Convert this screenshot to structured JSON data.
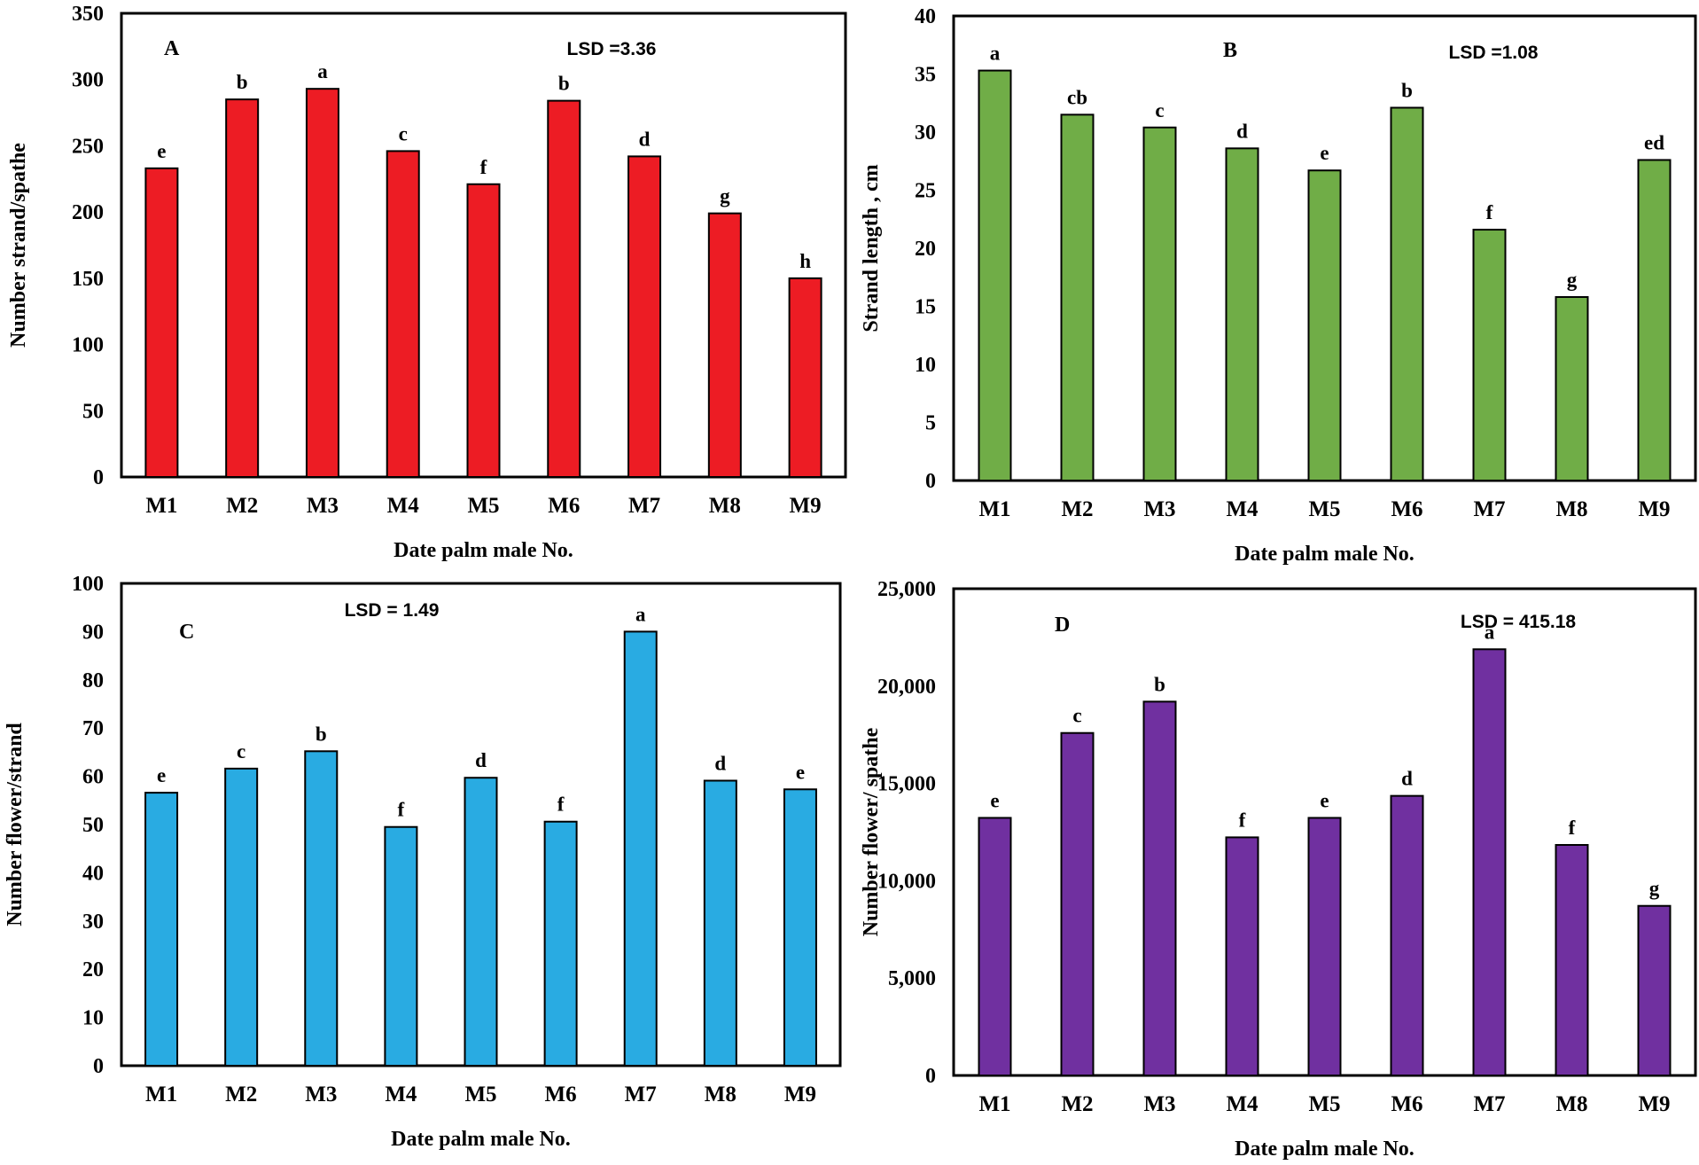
{
  "chart_data": [
    {
      "type": "bar",
      "panel": "A",
      "lsd": "LSD =3.36",
      "title": "",
      "xlabel": "Date palm  male No.",
      "ylabel": "Number strand/spathe",
      "categories": [
        "M1",
        "M2",
        "M3",
        "M4",
        "M5",
        "M6",
        "M7",
        "M8",
        "M9"
      ],
      "values": [
        233,
        285,
        293,
        246,
        221,
        284,
        242,
        199,
        150
      ],
      "significance": [
        "e",
        "b",
        "a",
        "c",
        "f",
        "b",
        "d",
        "g",
        "h"
      ],
      "ylim": [
        0,
        350
      ],
      "yticks": [
        0,
        50,
        100,
        150,
        200,
        250,
        300,
        350
      ],
      "ytick_labels": [
        "0",
        "50",
        "100",
        "150",
        "200",
        "250",
        "300",
        "350"
      ],
      "color": "#ED1C24",
      "grid": false,
      "legend": "none"
    },
    {
      "type": "bar",
      "panel": "B",
      "lsd": "LSD =1.08",
      "title": "",
      "xlabel": "Date palm  male No.",
      "ylabel": "Strand length , cm",
      "categories": [
        "M1",
        "M2",
        "M3",
        "M4",
        "M5",
        "M6",
        "M7",
        "M8",
        "M9"
      ],
      "values": [
        35.3,
        31.5,
        30.4,
        28.6,
        26.7,
        32.1,
        21.6,
        15.8,
        27.6
      ],
      "significance": [
        "a",
        "cb",
        "c",
        "d",
        "e",
        "b",
        "f",
        "g",
        "ed"
      ],
      "ylim": [
        0,
        40
      ],
      "yticks": [
        0,
        5,
        10,
        15,
        20,
        25,
        30,
        35,
        40
      ],
      "ytick_labels": [
        "0",
        "5",
        "10",
        "15",
        "20",
        "25",
        "30",
        "35",
        "40"
      ],
      "color": "#70AD47",
      "grid": false,
      "legend": "none"
    },
    {
      "type": "bar",
      "panel": "C",
      "lsd": "LSD = 1.49",
      "title": "",
      "xlabel": "Date palm  male No.",
      "ylabel": "Number  flower/strand",
      "categories": [
        "M1",
        "M2",
        "M3",
        "M4",
        "M5",
        "M6",
        "M7",
        "M8",
        "M9"
      ],
      "values": [
        56.6,
        61.6,
        65.2,
        49.5,
        59.7,
        50.6,
        90.0,
        59.1,
        57.3
      ],
      "significance": [
        "e",
        "c",
        "b",
        "f",
        "d",
        "f",
        "a",
        "d",
        "e"
      ],
      "ylim": [
        0,
        100
      ],
      "yticks": [
        0,
        10,
        20,
        30,
        40,
        50,
        60,
        70,
        80,
        90,
        100
      ],
      "ytick_labels": [
        "0",
        "10",
        "20",
        "30",
        "40",
        "50",
        "60",
        "70",
        "80",
        "90",
        "100"
      ],
      "color": "#29ABE2",
      "grid": false,
      "legend": "none"
    },
    {
      "type": "bar",
      "panel": "D",
      "lsd": "LSD = 415.18",
      "title": "",
      "xlabel": "Date palm  male No.",
      "ylabel": "Number flower/ spathe",
      "categories": [
        "M1",
        "M2",
        "M3",
        "M4",
        "M5",
        "M6",
        "M7",
        "M8",
        "M9"
      ],
      "values": [
        13230,
        17590,
        19200,
        12230,
        13230,
        14360,
        21890,
        11840,
        8710
      ],
      "significance": [
        "e",
        "c",
        "b",
        "f",
        "e",
        "d",
        "a",
        "f",
        "g"
      ],
      "ylim": [
        0,
        25000
      ],
      "yticks": [
        0,
        5000,
        10000,
        15000,
        20000,
        25000
      ],
      "ytick_labels": [
        "0",
        "5,000",
        "10,000",
        "15,000",
        "20,000",
        "25,000"
      ],
      "color": "#7030A0",
      "grid": false,
      "legend": "none"
    }
  ]
}
